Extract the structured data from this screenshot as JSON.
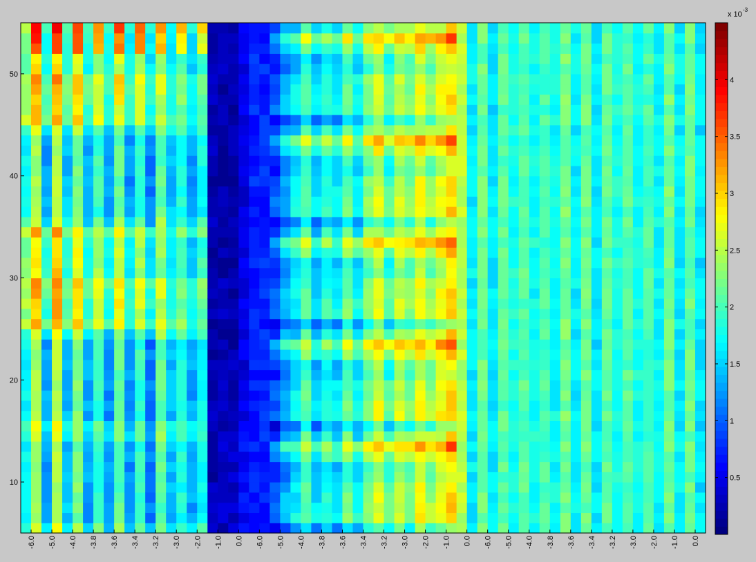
{
  "figure": {
    "background": "#c8c8c8"
  },
  "chart_data": {
    "type": "heatmap",
    "title": "",
    "xlabel": "",
    "ylabel": "",
    "colormap": "jet",
    "grid": false,
    "x_tick_labels": [
      "-6.0",
      "-5.0",
      "-4.0",
      "-3.8",
      "-3.6",
      "-3.4",
      "-3.2",
      "-3.0",
      "-2.0",
      "-1.0",
      "0.0",
      "-6.0",
      "-5.0",
      "-4.0",
      "-3.8",
      "-3.6",
      "-3.4",
      "-3.2",
      "-3.0",
      "-2.0",
      "-1.0",
      "0.0",
      "-6.0",
      "-5.0",
      "-4.0",
      "-3.8",
      "-3.6",
      "-3.4",
      "-3.2",
      "-3.0",
      "-2.0",
      "-1.0",
      "0.0"
    ],
    "ylim": [
      5,
      55
    ],
    "y_ticks": [
      10,
      20,
      30,
      40,
      50
    ],
    "rows": 50,
    "columns": 66,
    "values_unit_scale": "x 10^-3",
    "color_limits": [
      0.0,
      4.5
    ],
    "colorbar": {
      "ticks": [
        0.5,
        1,
        1.5,
        2,
        2.5,
        3,
        3.5,
        4
      ],
      "tick_labels": [
        "0.5",
        "1",
        "1.5",
        "2",
        "2.5",
        "3",
        "3.5",
        "4"
      ],
      "exponent_base": "x 10",
      "exponent": "-3",
      "placement": "right"
    },
    "note": "Cell values given in units of 1e-3; each of 66 columns over 50 rows (y from 5 to 55)."
  }
}
